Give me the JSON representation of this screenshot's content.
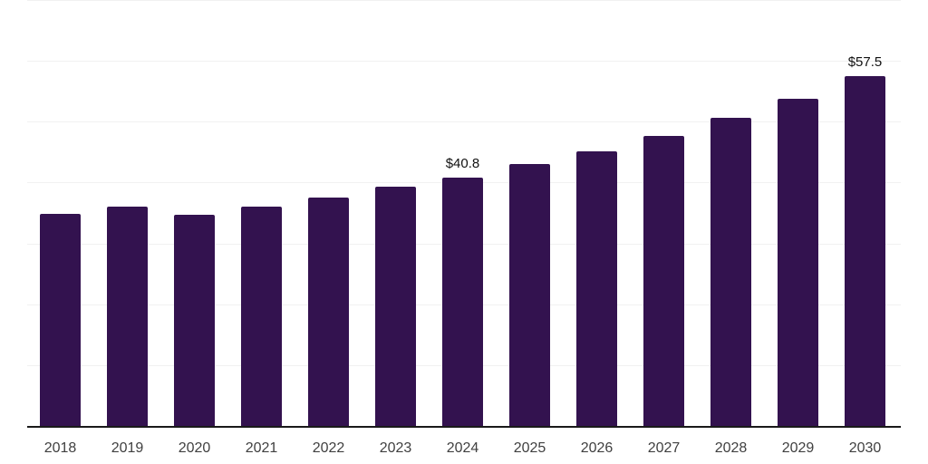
{
  "chart_data": {
    "type": "bar",
    "title": "",
    "xlabel": "",
    "ylabel": "",
    "categories": [
      "2018",
      "2019",
      "2020",
      "2021",
      "2022",
      "2023",
      "2024",
      "2025",
      "2026",
      "2027",
      "2028",
      "2029",
      "2030"
    ],
    "values": [
      34.8,
      36.0,
      34.7,
      36.1,
      37.5,
      39.3,
      40.8,
      43.0,
      45.2,
      47.6,
      50.7,
      53.8,
      57.5
    ],
    "data_labels": [
      "",
      "",
      "",
      "",
      "",
      "",
      "$40.8",
      "",
      "",
      "",
      "",
      "",
      "$57.5"
    ],
    "ylim": [
      0,
      70
    ],
    "gridline_step": 10,
    "grid": true,
    "legend": false,
    "colors": {
      "bar": "#33124f",
      "gridline": "#f1f1f1",
      "axis_line": "#1a1a1a",
      "tick_label": "#404040",
      "value_label": "#111111",
      "background": "#ffffff"
    }
  }
}
